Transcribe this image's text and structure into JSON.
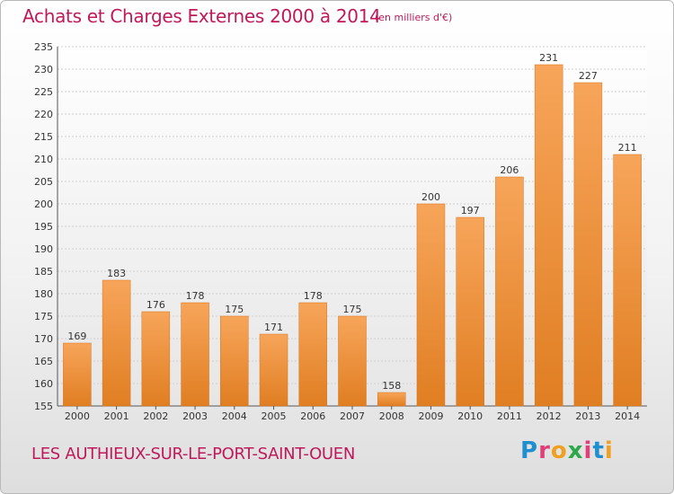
{
  "header": {
    "title": "Achats et Charges Externes 2000 à 2014",
    "unit": "(en milliers d'€)"
  },
  "footer": {
    "commune": "LES AUTHIEUX-SUR-LE-PORT-SAINT-OUEN",
    "logo_text": "Proxiti"
  },
  "colors": {
    "title": "#c0195a",
    "bar_top": "#f7a55a",
    "bar_bottom": "#e07e22"
  },
  "chart_data": {
    "type": "bar",
    "title": "Achats et Charges Externes 2000 à 2014",
    "subtitle": "(en milliers d'€)",
    "xlabel": "",
    "ylabel": "",
    "categories": [
      "2000",
      "2001",
      "2002",
      "2003",
      "2004",
      "2005",
      "2006",
      "2007",
      "2008",
      "2009",
      "2010",
      "2011",
      "2012",
      "2013",
      "2014"
    ],
    "values": [
      169,
      183,
      176,
      178,
      175,
      171,
      178,
      175,
      158,
      200,
      197,
      206,
      231,
      227,
      211
    ],
    "ylim": [
      155,
      235
    ],
    "yticks": [
      155,
      160,
      165,
      170,
      175,
      180,
      185,
      190,
      195,
      200,
      205,
      210,
      215,
      220,
      225,
      230,
      235
    ],
    "grid": true,
    "legend": "none"
  }
}
